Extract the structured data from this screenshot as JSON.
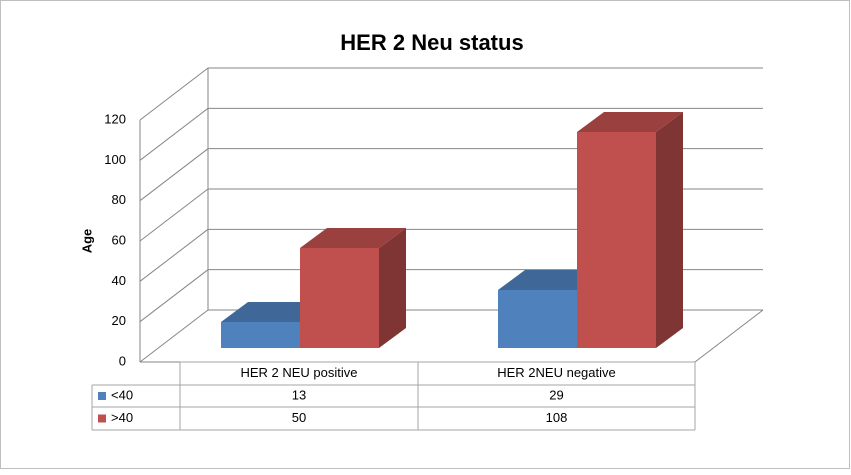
{
  "chart_data": {
    "type": "bar3d",
    "title": "HER 2 Neu status",
    "y_label": "Age",
    "categories": [
      "HER 2 NEU positive",
      "HER 2NEU negative"
    ],
    "series": [
      {
        "name": "<40",
        "color": "#4f81bd",
        "values": [
          13,
          29
        ]
      },
      {
        "name": ">40",
        "color": "#c0504d",
        "values": [
          50,
          108
        ]
      }
    ],
    "ylim": [
      0,
      120
    ],
    "yticks": [
      0,
      20,
      40,
      60,
      80,
      100,
      120
    ],
    "grid": true,
    "data_table": true
  }
}
